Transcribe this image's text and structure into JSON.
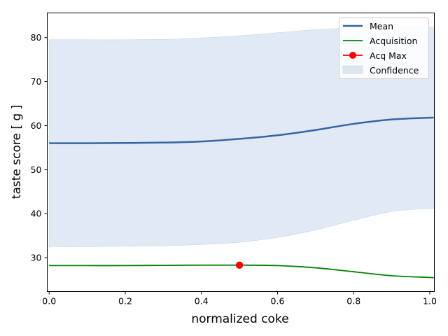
{
  "chart_data": {
    "type": "line",
    "xlabel": "normalized coke",
    "ylabel": "taste score [ g ]",
    "xlim": [
      -0.005,
      1.012
    ],
    "ylim": [
      22.3,
      85.6
    ],
    "xticks": [
      "0.0",
      "0.2",
      "0.4",
      "0.6",
      "0.8",
      "1.0"
    ],
    "yticks": [
      "30",
      "40",
      "50",
      "60",
      "70",
      "80"
    ],
    "grid": false,
    "legend_position": "top-right",
    "x": [
      0.0,
      0.1,
      0.2,
      0.3,
      0.4,
      0.5,
      0.6,
      0.7,
      0.8,
      0.9,
      1.0,
      1.01
    ],
    "series": [
      {
        "name": "Mean",
        "color": "#3465a4",
        "values": [
          56.0,
          56.0,
          56.05,
          56.15,
          56.4,
          57.0,
          57.8,
          59.0,
          60.4,
          61.4,
          61.8,
          61.8
        ]
      },
      {
        "name": "Acquisition",
        "color": "#008000",
        "values": [
          28.2,
          28.2,
          28.2,
          28.25,
          28.3,
          28.3,
          28.2,
          27.7,
          26.8,
          25.9,
          25.5,
          25.4
        ]
      },
      {
        "name": "Confidence",
        "color": "#dce6f2",
        "lower": [
          32.5,
          32.5,
          32.6,
          32.7,
          33.0,
          33.5,
          34.6,
          36.3,
          38.5,
          40.5,
          41.2,
          41.2
        ],
        "upper": [
          79.5,
          79.5,
          79.5,
          79.6,
          79.9,
          80.4,
          81.1,
          81.8,
          82.2,
          82.4,
          82.4,
          82.4
        ]
      }
    ],
    "acq_max": {
      "name": "Acq Max",
      "color": "#ff0000",
      "x": 0.5,
      "y": 28.3
    }
  }
}
